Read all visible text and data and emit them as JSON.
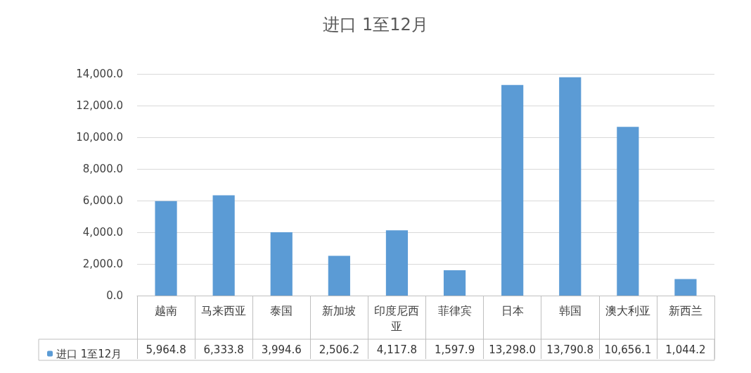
{
  "chart_data": {
    "type": "bar",
    "title": "进口 1至12月",
    "categories": [
      "越南",
      "马来西亚",
      "泰国",
      "新加坡",
      "印度尼西亚",
      "菲律宾",
      "日本",
      "韩国",
      "澳大利亚",
      "新西兰"
    ],
    "series": [
      {
        "name": "进口 1至12月",
        "color": "#5b9bd5",
        "values": [
          5964.8,
          6333.8,
          3994.6,
          2506.2,
          4117.8,
          1597.9,
          13298.0,
          13790.8,
          10656.1,
          1044.2
        ],
        "value_labels": [
          "5,964.8",
          "6,333.8",
          "3,994.6",
          "2,506.2",
          "4,117.8",
          "1,597.9",
          "13,298.0",
          "13,790.8",
          "10,656.1",
          "1,044.2"
        ]
      }
    ],
    "ylim": [
      0,
      14000
    ],
    "yticks": [
      {
        "value": 0,
        "label": "0.0"
      },
      {
        "value": 2000,
        "label": "2,000.0"
      },
      {
        "value": 4000,
        "label": "4,000.0"
      },
      {
        "value": 6000,
        "label": "6,000.0"
      },
      {
        "value": 8000,
        "label": "8,000.0"
      },
      {
        "value": 10000,
        "label": "10,000.0"
      },
      {
        "value": 12000,
        "label": "12,000.0"
      },
      {
        "value": 14000,
        "label": "14,000.0"
      }
    ],
    "grid": "y",
    "legend": "bottom left"
  }
}
